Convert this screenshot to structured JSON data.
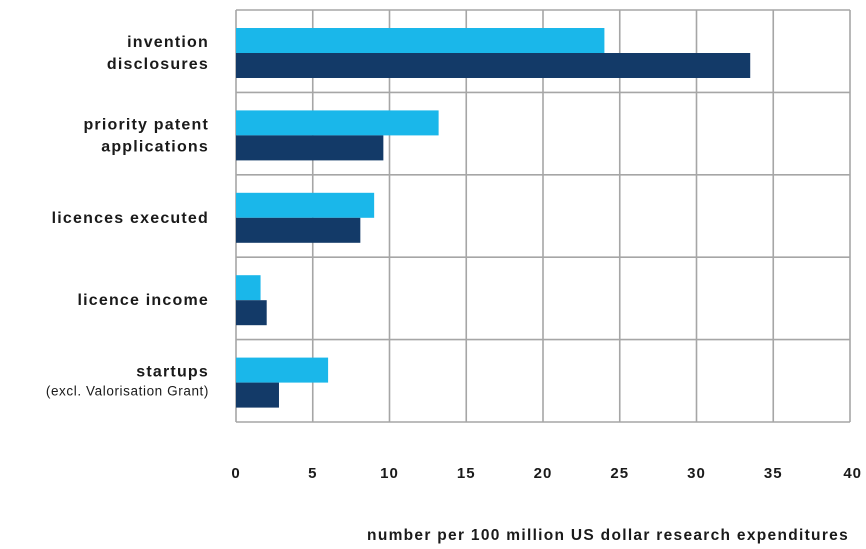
{
  "chart_data": {
    "type": "bar",
    "orientation": "horizontal",
    "categories": [
      "invention\ndisclosures",
      "priority patent\napplications",
      "licences executed",
      "licence income",
      "startups"
    ],
    "category_notes": [
      "",
      "",
      "",
      "",
      "(excl. Valorisation Grant)"
    ],
    "series": [
      {
        "color": "#1ab7ea",
        "values": [
          24,
          13.2,
          9,
          1.6,
          6
        ]
      },
      {
        "color": "#133a68",
        "values": [
          33.5,
          9.6,
          8.1,
          2,
          2.8
        ]
      }
    ],
    "xlim": [
      0,
      40
    ],
    "xticks": [
      0,
      5,
      10,
      15,
      20,
      25,
      30,
      35,
      40
    ],
    "xlabel": "number per 100 million US dollar research expenditures",
    "ylabel": "",
    "title": "",
    "grid": true,
    "legend": "none"
  }
}
